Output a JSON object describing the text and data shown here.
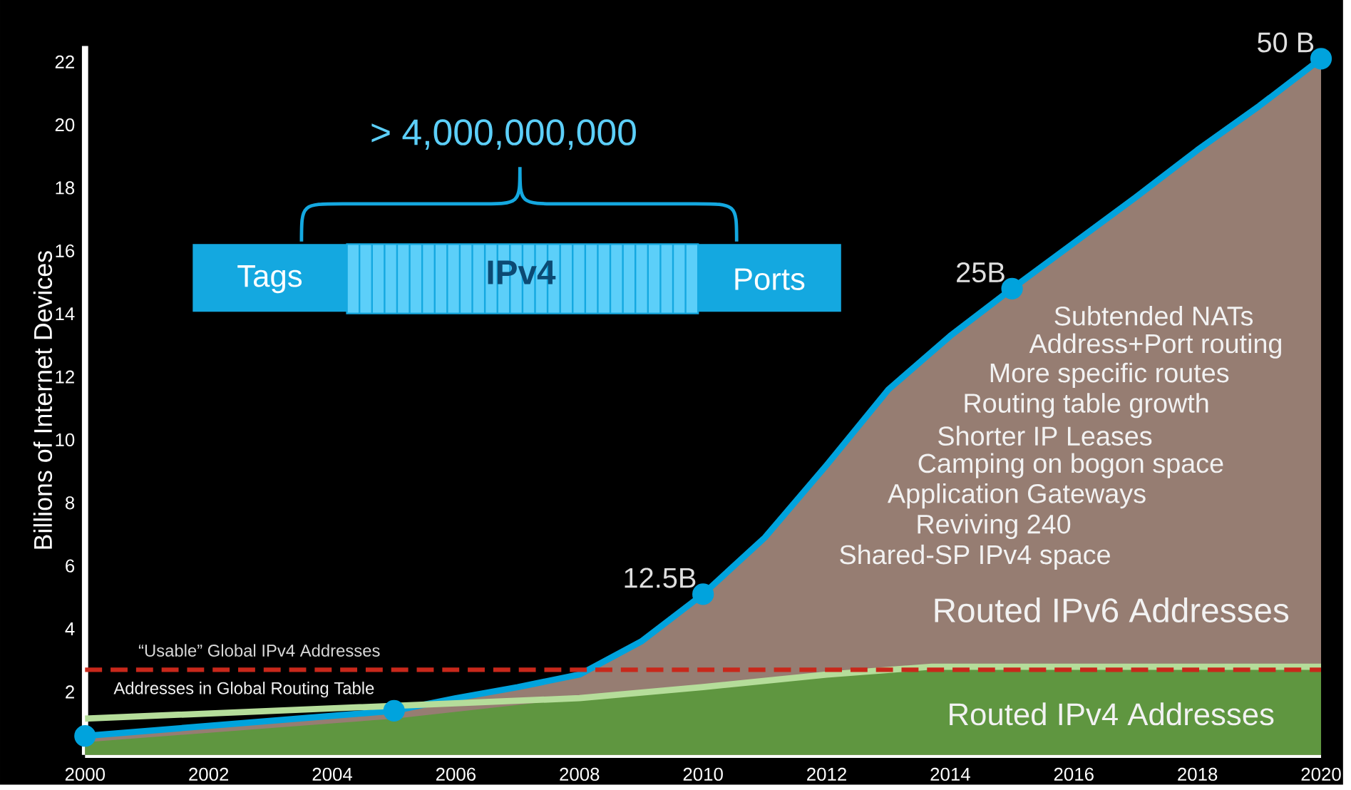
{
  "chart_data": {
    "type": "area",
    "ylabel": "Billions of Internet Devices",
    "xlim": [
      2000,
      2020
    ],
    "ylim": [
      0,
      22.5
    ],
    "xticks": [
      2000,
      2002,
      2004,
      2006,
      2008,
      2010,
      2012,
      2014,
      2016,
      2018,
      2020
    ],
    "yticks": [
      2,
      4,
      6,
      8,
      10,
      12,
      14,
      16,
      18,
      20,
      22
    ],
    "series": [
      {
        "name": "Routed IPv6 Addresses",
        "color": "#967d72",
        "x": [
          2000,
          2005,
          2006,
          2007,
          2008,
          2009,
          2010,
          2011,
          2012,
          2013,
          2014,
          2015,
          2016,
          2017,
          2018,
          2019,
          2020
        ],
        "values": [
          0.6,
          1.4,
          1.8,
          2.15,
          2.55,
          3.6,
          5.1,
          6.9,
          9.2,
          11.6,
          13.3,
          14.8,
          16.25,
          17.7,
          19.2,
          20.6,
          22.1
        ]
      },
      {
        "name": "Routed IPv4 Addresses",
        "color": "#5f9640",
        "x": [
          2000,
          2005,
          2008,
          2010,
          2012,
          2013.7,
          2020
        ],
        "values": [
          0.4,
          1.15,
          1.8,
          2.15,
          2.55,
          2.8,
          2.8
        ]
      },
      {
        "name": "Addresses in Global Routing Table",
        "type": "line",
        "color": "#b5dd9a",
        "marker": "none",
        "x": [
          2000,
          2005,
          2008,
          2010,
          2012,
          2013.7,
          2020
        ],
        "values": [
          1.15,
          null,
          1.8,
          2.15,
          2.55,
          2.8,
          2.8
        ]
      },
      {
        "type": "scatter",
        "color": "#00a3dd",
        "marker": "circle",
        "x": [
          2000,
          2005,
          2010,
          2015,
          2020
        ],
        "values": [
          0.6,
          1.4,
          5.1,
          14.8,
          22.1
        ]
      }
    ],
    "ref_lines": [
      {
        "axis": "y",
        "value": 2.7,
        "label": "“Usable” Global IPv4 Addresses",
        "color": "#c8281b",
        "line_style": "dashed"
      }
    ],
    "annotations": [
      "> 4,000,000,000",
      "Tags",
      "IPv4",
      "Ports",
      "Subtended NATs",
      "Address+Port routing",
      "More specific routes",
      "Routing table growth",
      "Shorter IP Leases",
      "Camping on bogon space",
      "Application Gateways",
      "Reviving 240",
      "Shared-SP IPv4 space",
      {
        "text": "12.5B",
        "x": 2010,
        "y": 5.1
      },
      {
        "text": "25B",
        "x": 2015,
        "y": 14.8
      },
      {
        "text": "50 B",
        "x": 2020,
        "y": 22.1
      }
    ]
  }
}
